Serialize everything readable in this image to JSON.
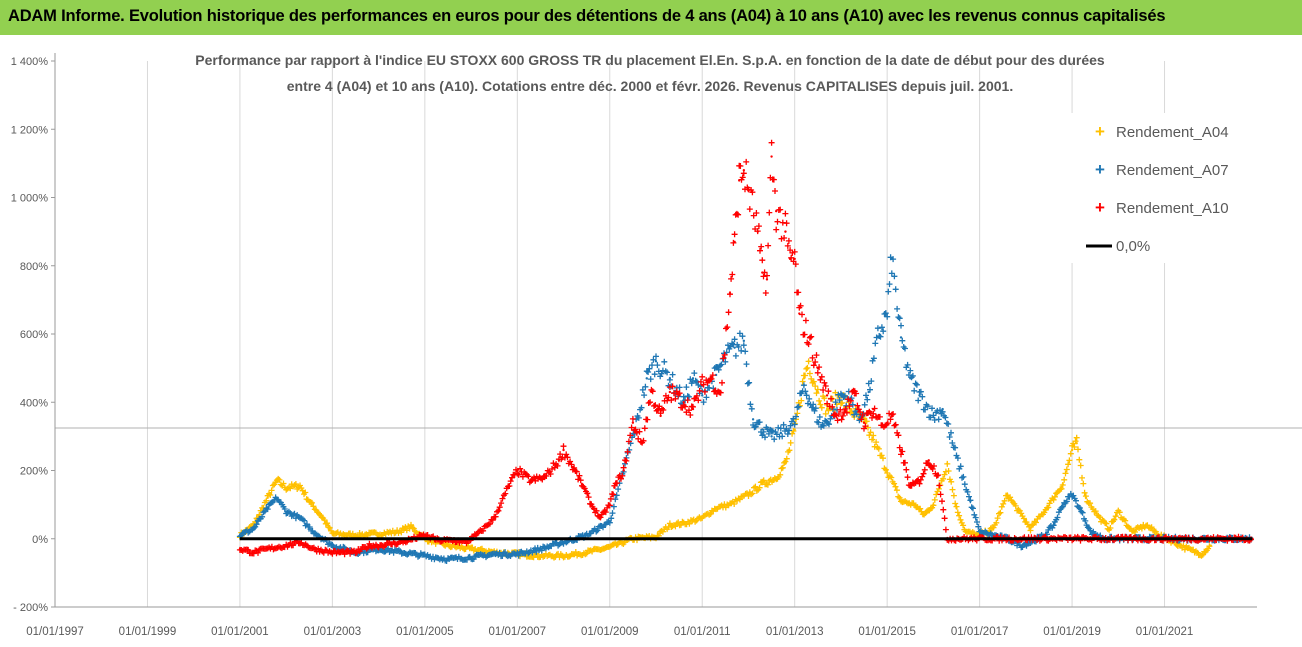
{
  "banner": {
    "title": "ADAM Informe. Evolution historique des performances en euros pour des détentions de 4 ans (A04) à 10 ans (A10) avec les revenus connus capitalisés",
    "background": "#92d050"
  },
  "chart_data": {
    "type": "scatter",
    "title_lines": [
      "Performance par rapport à l'indice EU STOXX 600 GROSS TR  du placement El.En. S.p.A.  en fonction de la date de début pour des durées",
      "entre 4 (A04) et 10 ans (A10). Cotations entre déc. 2000 et févr. 2026. Revenus CAPITALISES depuis juil. 2001."
    ],
    "ylim": [
      -200,
      1400
    ],
    "yticks": [
      -200,
      0,
      200,
      400,
      600,
      800,
      1000,
      1200,
      1400
    ],
    "ytick_labels": [
      "- 200%",
      "0%",
      "200%",
      "400%",
      "600%",
      "800%",
      "1 000%",
      "1 200%",
      "1 400%"
    ],
    "xlim": [
      1997.0,
      2023.0
    ],
    "xticks": [
      1997,
      1999,
      2001,
      2003,
      2005,
      2007,
      2009,
      2011,
      2013,
      2015,
      2017,
      2019,
      2021
    ],
    "xtick_labels": [
      "01/01/1997",
      "01/01/1999",
      "01/01/2001",
      "01/01/2003",
      "01/01/2005",
      "01/01/2007",
      "01/01/2009",
      "01/01/2011",
      "01/01/2013",
      "01/01/2015",
      "01/01/2017",
      "01/01/2019",
      "01/01/2021"
    ],
    "grid": "vertical",
    "legend_position": "top-right",
    "series": [
      {
        "name": "Rendement_A04",
        "color": "#ffc000",
        "marker": "plus",
        "points": [
          [
            2001.0,
            10
          ],
          [
            2001.3,
            40
          ],
          [
            2001.6,
            120
          ],
          [
            2001.8,
            170
          ],
          [
            2002.0,
            150
          ],
          [
            2002.3,
            155
          ],
          [
            2002.5,
            110
          ],
          [
            2002.8,
            60
          ],
          [
            2003.0,
            15
          ],
          [
            2003.5,
            10
          ],
          [
            2004.0,
            15
          ],
          [
            2004.4,
            20
          ],
          [
            2004.7,
            35
          ],
          [
            2005.0,
            0
          ],
          [
            2005.5,
            -20
          ],
          [
            2006.0,
            -30
          ],
          [
            2006.5,
            -40
          ],
          [
            2007.0,
            -45
          ],
          [
            2007.5,
            -50
          ],
          [
            2008.0,
            -50
          ],
          [
            2008.5,
            -40
          ],
          [
            2009.0,
            -25
          ],
          [
            2009.5,
            0
          ],
          [
            2010.0,
            5
          ],
          [
            2010.3,
            40
          ],
          [
            2010.6,
            45
          ],
          [
            2011.0,
            60
          ],
          [
            2011.3,
            90
          ],
          [
            2011.6,
            100
          ],
          [
            2012.0,
            130
          ],
          [
            2012.3,
            160
          ],
          [
            2012.6,
            180
          ],
          [
            2012.8,
            220
          ],
          [
            2013.0,
            320
          ],
          [
            2013.2,
            470
          ],
          [
            2013.3,
            520
          ],
          [
            2013.5,
            430
          ],
          [
            2013.7,
            380
          ],
          [
            2014.0,
            420
          ],
          [
            2014.2,
            380
          ],
          [
            2014.5,
            340
          ],
          [
            2014.7,
            290
          ],
          [
            2015.0,
            200
          ],
          [
            2015.3,
            110
          ],
          [
            2015.6,
            100
          ],
          [
            2015.8,
            70
          ],
          [
            2016.0,
            100
          ],
          [
            2016.3,
            220
          ],
          [
            2016.5,
            90
          ],
          [
            2016.7,
            20
          ],
          [
            2017.0,
            10
          ],
          [
            2017.3,
            30
          ],
          [
            2017.6,
            130
          ],
          [
            2017.9,
            70
          ],
          [
            2018.1,
            30
          ],
          [
            2018.4,
            80
          ],
          [
            2018.6,
            120
          ],
          [
            2018.8,
            160
          ],
          [
            2019.0,
            260
          ],
          [
            2019.1,
            280
          ],
          [
            2019.3,
            120
          ],
          [
            2019.6,
            60
          ],
          [
            2019.8,
            30
          ],
          [
            2020.0,
            80
          ],
          [
            2020.3,
            20
          ],
          [
            2020.6,
            40
          ],
          [
            2020.9,
            10
          ],
          [
            2021.2,
            -10
          ],
          [
            2021.5,
            -30
          ],
          [
            2021.8,
            -45
          ],
          [
            2022.0,
            -20
          ]
        ]
      },
      {
        "name": "Rendement_A07",
        "color": "#1f77b4",
        "marker": "plus",
        "points": [
          [
            2001.0,
            10
          ],
          [
            2001.3,
            30
          ],
          [
            2001.6,
            90
          ],
          [
            2001.8,
            120
          ],
          [
            2002.0,
            80
          ],
          [
            2002.3,
            60
          ],
          [
            2002.6,
            20
          ],
          [
            2003.0,
            -20
          ],
          [
            2003.5,
            -40
          ],
          [
            2004.0,
            -30
          ],
          [
            2004.5,
            -40
          ],
          [
            2005.0,
            -50
          ],
          [
            2005.5,
            -60
          ],
          [
            2006.0,
            -55
          ],
          [
            2006.5,
            -45
          ],
          [
            2007.0,
            -45
          ],
          [
            2007.5,
            -30
          ],
          [
            2008.0,
            -10
          ],
          [
            2008.5,
            10
          ],
          [
            2009.0,
            50
          ],
          [
            2009.3,
            200
          ],
          [
            2009.6,
            350
          ],
          [
            2009.8,
            470
          ],
          [
            2010.0,
            520
          ],
          [
            2010.3,
            470
          ],
          [
            2010.6,
            400
          ],
          [
            2010.8,
            470
          ],
          [
            2011.0,
            420
          ],
          [
            2011.3,
            480
          ],
          [
            2011.5,
            530
          ],
          [
            2011.7,
            560
          ],
          [
            2011.9,
            580
          ],
          [
            2012.1,
            350
          ],
          [
            2012.3,
            320
          ],
          [
            2012.5,
            300
          ],
          [
            2012.7,
            310
          ],
          [
            2013.0,
            340
          ],
          [
            2013.2,
            450
          ],
          [
            2013.4,
            380
          ],
          [
            2013.6,
            330
          ],
          [
            2013.8,
            360
          ],
          [
            2014.0,
            420
          ],
          [
            2014.2,
            410
          ],
          [
            2014.4,
            350
          ],
          [
            2014.6,
            430
          ],
          [
            2014.8,
            590
          ],
          [
            2015.0,
            660
          ],
          [
            2015.1,
            820
          ],
          [
            2015.3,
            590
          ],
          [
            2015.5,
            470
          ],
          [
            2015.7,
            420
          ],
          [
            2016.0,
            360
          ],
          [
            2016.2,
            380
          ],
          [
            2016.5,
            240
          ],
          [
            2016.8,
            110
          ],
          [
            2017.0,
            20
          ],
          [
            2017.3,
            10
          ],
          [
            2017.6,
            0
          ],
          [
            2017.9,
            -20
          ],
          [
            2018.1,
            -10
          ],
          [
            2018.4,
            10
          ],
          [
            2018.6,
            40
          ],
          [
            2018.8,
            100
          ],
          [
            2019.0,
            130
          ],
          [
            2019.2,
            80
          ],
          [
            2019.4,
            20
          ],
          [
            2019.7,
            0
          ],
          [
            2020.0,
            0
          ],
          [
            2020.5,
            0
          ],
          [
            2021.0,
            0
          ],
          [
            2021.5,
            0
          ],
          [
            2022.0,
            0
          ],
          [
            2022.5,
            0
          ],
          [
            2022.9,
            0
          ]
        ]
      },
      {
        "name": "Rendement_A10",
        "color": "#ff0000",
        "marker": "plus",
        "points": [
          [
            2001.0,
            -30
          ],
          [
            2001.3,
            -40
          ],
          [
            2001.6,
            -30
          ],
          [
            2002.0,
            -20
          ],
          [
            2002.3,
            -10
          ],
          [
            2002.6,
            -30
          ],
          [
            2003.0,
            -40
          ],
          [
            2003.5,
            -40
          ],
          [
            2003.8,
            -20
          ],
          [
            2004.0,
            -20
          ],
          [
            2004.5,
            -10
          ],
          [
            2005.0,
            10
          ],
          [
            2005.3,
            -5
          ],
          [
            2005.6,
            -5
          ],
          [
            2005.9,
            -10
          ],
          [
            2006.2,
            20
          ],
          [
            2006.5,
            60
          ],
          [
            2006.8,
            150
          ],
          [
            2007.0,
            200
          ],
          [
            2007.3,
            170
          ],
          [
            2007.6,
            180
          ],
          [
            2007.9,
            230
          ],
          [
            2008.0,
            260
          ],
          [
            2008.2,
            210
          ],
          [
            2008.4,
            160
          ],
          [
            2008.6,
            100
          ],
          [
            2008.8,
            60
          ],
          [
            2009.0,
            100
          ],
          [
            2009.1,
            150
          ],
          [
            2009.3,
            200
          ],
          [
            2009.5,
            340
          ],
          [
            2009.7,
            280
          ],
          [
            2009.9,
            430
          ],
          [
            2010.1,
            360
          ],
          [
            2010.3,
            430
          ],
          [
            2010.6,
            400
          ],
          [
            2010.8,
            380
          ],
          [
            2011.0,
            450
          ],
          [
            2011.2,
            470
          ],
          [
            2011.4,
            430
          ],
          [
            2011.6,
            720
          ],
          [
            2011.7,
            870
          ],
          [
            2011.8,
            1050
          ],
          [
            2011.9,
            1080
          ],
          [
            2012.0,
            1020
          ],
          [
            2012.2,
            900
          ],
          [
            2012.3,
            780
          ],
          [
            2012.4,
            760
          ],
          [
            2012.5,
            1120
          ],
          [
            2012.6,
            960
          ],
          [
            2012.8,
            900
          ],
          [
            2012.9,
            820
          ],
          [
            2013.0,
            820
          ],
          [
            2013.1,
            660
          ],
          [
            2013.3,
            590
          ],
          [
            2013.5,
            500
          ],
          [
            2013.7,
            420
          ],
          [
            2013.9,
            360
          ],
          [
            2014.1,
            380
          ],
          [
            2014.3,
            420
          ],
          [
            2014.5,
            340
          ],
          [
            2014.7,
            380
          ],
          [
            2014.9,
            330
          ],
          [
            2015.1,
            360
          ],
          [
            2015.3,
            260
          ],
          [
            2015.5,
            150
          ],
          [
            2015.7,
            170
          ],
          [
            2015.9,
            230
          ],
          [
            2016.1,
            190
          ],
          [
            2016.3,
            0
          ],
          [
            2017.0,
            0
          ],
          [
            2018.0,
            0
          ],
          [
            2019.0,
            0
          ],
          [
            2020.0,
            0
          ],
          [
            2021.0,
            0
          ],
          [
            2022.0,
            0
          ],
          [
            2022.9,
            0
          ]
        ]
      },
      {
        "name": "0,0%",
        "color": "#000000",
        "marker": "line",
        "points": [
          [
            2001.0,
            0
          ],
          [
            2022.9,
            0
          ]
        ]
      }
    ]
  }
}
